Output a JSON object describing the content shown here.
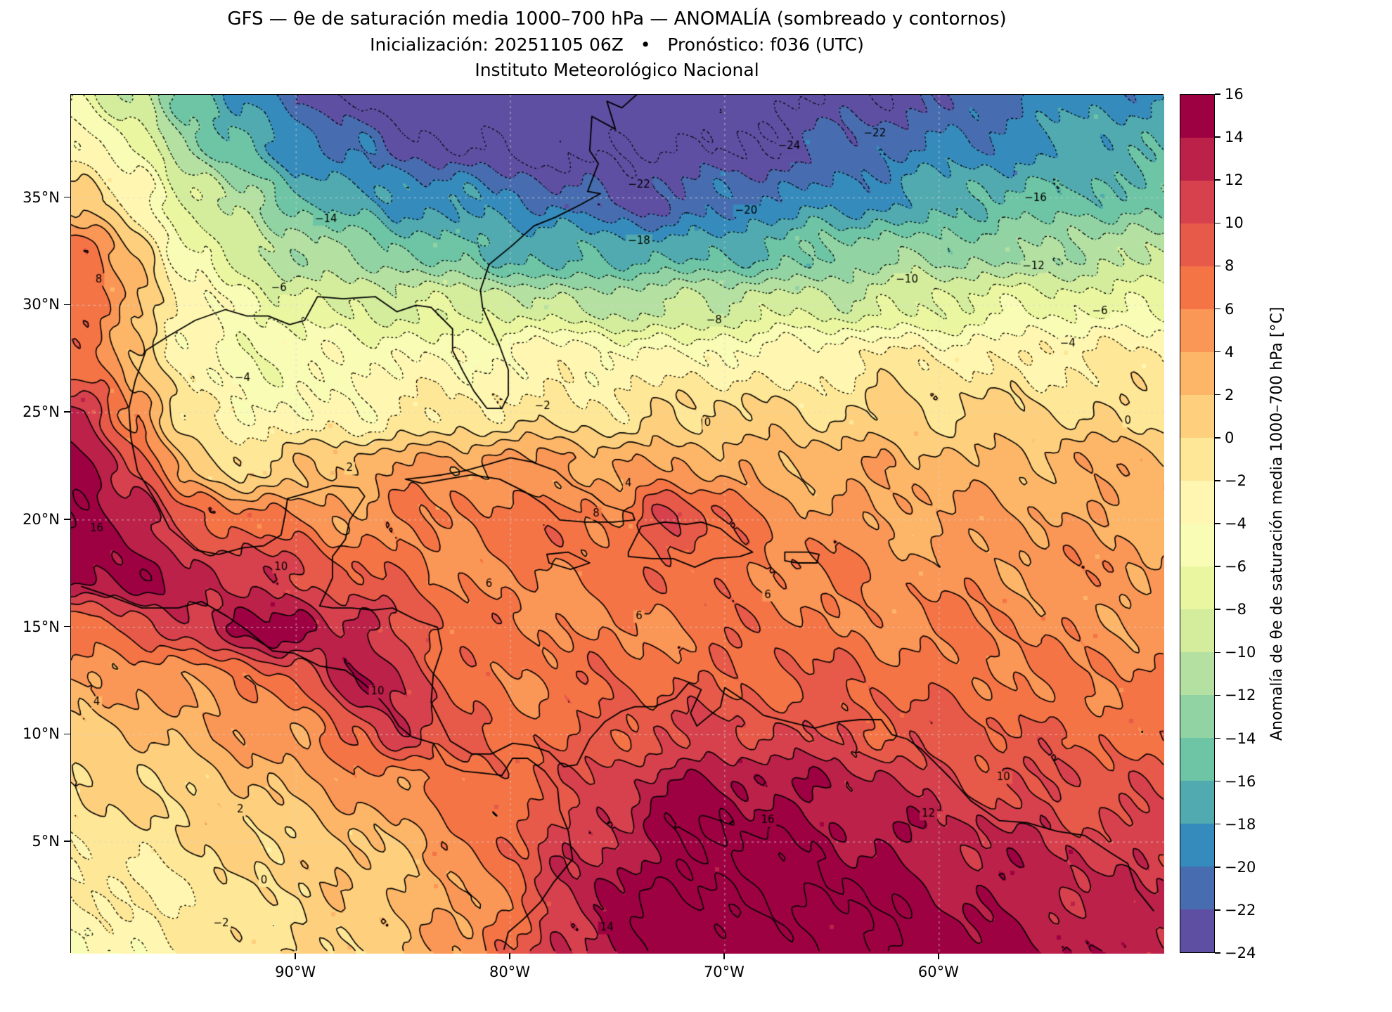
{
  "header": {
    "title": "GFS — θe de saturación media 1000–700 hPa — ANOMALÍA (sombreado y contornos)",
    "subtitle": "Inicialización: 20251105 06Z   •   Pronóstico: f036 (UTC)",
    "institution": "Instituto Meteorológico Nacional"
  },
  "chart_data": {
    "type": "heatmap",
    "subtype": "filled-contour-map",
    "title": "GFS — θe de saturación media 1000–700 hPa — ANOMALÍA (sombreado y contornos)",
    "units": "°C",
    "extent": {
      "lon": [
        -100.5,
        -49.5
      ],
      "lat": [
        -0.2,
        39.8
      ]
    },
    "levels": {
      "min": -24,
      "max": 16,
      "step": 2
    },
    "contour_style": {
      "negative": "dotted",
      "zero_and_positive": "solid",
      "color": "#000000"
    },
    "colors": [
      "#5e4fa2",
      "#476db0",
      "#358bbc",
      "#50aaaf",
      "#6dc5a5",
      "#92d3a4",
      "#b4e1a2",
      "#d3ed9c",
      "#ebf7a0",
      "#f8fcb5",
      "#fff7b1",
      "#fee796",
      "#fed07e",
      "#fdb668",
      "#fa9656",
      "#f57446",
      "#e75948",
      "#d7414e",
      "#bb2149",
      "#9e0142"
    ],
    "grid": {
      "lon_start": -100,
      "lon_step": 2.5,
      "lat_start": 0,
      "lat_step": 2.5,
      "values": [
        [
          -4,
          -3,
          -2,
          -1,
          0,
          1,
          2,
          4,
          8,
          12,
          15,
          17,
          17,
          17,
          16,
          16,
          15,
          14,
          14,
          14,
          13
        ],
        [
          -3,
          -2,
          -2,
          0,
          0,
          1,
          2,
          4,
          7,
          11,
          15,
          16,
          17,
          16,
          16,
          15,
          14,
          14,
          13,
          12,
          12
        ],
        [
          -1,
          -1,
          0,
          0,
          1,
          2,
          3,
          5,
          8,
          11,
          13,
          15,
          16,
          16,
          15,
          14,
          13,
          12,
          12,
          11,
          11
        ],
        [
          0,
          0,
          1,
          2,
          3,
          4,
          5,
          7,
          8,
          9,
          11,
          14,
          15,
          14,
          13,
          12,
          11,
          10,
          10,
          9,
          9
        ],
        [
          2,
          2,
          3,
          4,
          5,
          8,
          12,
          8,
          7,
          8,
          9,
          10,
          10,
          10,
          10,
          9,
          9,
          8,
          8,
          8,
          7
        ],
        [
          4,
          4,
          5,
          6,
          8,
          13,
          12,
          8,
          6,
          7,
          7,
          8,
          8,
          8,
          8,
          7,
          7,
          7,
          6,
          6,
          6
        ],
        [
          8,
          9,
          11,
          14,
          15,
          13,
          10,
          7,
          6,
          6,
          6,
          6,
          7,
          7,
          6,
          6,
          6,
          6,
          5,
          5,
          5
        ],
        [
          14,
          15,
          13,
          12,
          10,
          8,
          7,
          6,
          6,
          6,
          6,
          8,
          7,
          6,
          6,
          5,
          5,
          5,
          5,
          5,
          4
        ],
        [
          16,
          14,
          8,
          7,
          6,
          5,
          6,
          6,
          6,
          8,
          6,
          11,
          7,
          5,
          5,
          4,
          4,
          4,
          4,
          4,
          4
        ],
        [
          14,
          10,
          2,
          0,
          1,
          2,
          4,
          5,
          5,
          4,
          3,
          4,
          4,
          3,
          3,
          3,
          3,
          3,
          3,
          3,
          3
        ],
        [
          12,
          6,
          -2,
          -4,
          -4,
          -3,
          -2,
          -2,
          -2,
          -1,
          -1,
          0,
          0,
          0,
          0,
          1,
          0,
          0,
          0,
          0,
          0
        ],
        [
          6,
          2,
          -3,
          -5,
          -5,
          -5,
          -4,
          -4,
          -3,
          -3,
          -4,
          -4,
          -3,
          -3,
          -3,
          -2,
          -2,
          -2,
          -2,
          -2,
          -2
        ],
        [
          8,
          3,
          -3,
          -6,
          -7,
          -8,
          -8,
          -9,
          -9,
          -10,
          -10,
          -10,
          -10,
          -9,
          -9,
          -8,
          -8,
          -7,
          -7,
          -6,
          -6
        ],
        [
          7,
          1,
          -5,
          -9,
          -11,
          -13,
          -14,
          -15,
          -16,
          -17,
          -17,
          -17,
          -16,
          -15,
          -14,
          -13,
          -13,
          -12,
          -12,
          -11,
          -11
        ],
        [
          2,
          -3,
          -8,
          -12,
          -15,
          -17,
          -18,
          -19,
          -20,
          -21,
          -22,
          -22,
          -21,
          -20,
          -19,
          -18,
          -17,
          -16,
          -16,
          -15,
          -15
        ],
        [
          -3,
          -7,
          -12,
          -16,
          -19,
          -21,
          -23,
          -24,
          -24,
          -25,
          -25,
          -24,
          -24,
          -23,
          -22,
          -21,
          -20,
          -19,
          -18,
          -17,
          -17
        ],
        [
          -6,
          -10,
          -15,
          -19,
          -22,
          -24,
          -26,
          -26,
          -27,
          -27,
          -27,
          -26,
          -26,
          -25,
          -24,
          -23,
          -22,
          -21,
          -20,
          -19,
          -18
        ]
      ]
    },
    "x_ticks": [
      {
        "label": "90°W",
        "lon": -90
      },
      {
        "label": "80°W",
        "lon": -80
      },
      {
        "label": "70°W",
        "lon": -70
      },
      {
        "label": "60°W",
        "lon": -60
      }
    ],
    "y_ticks": [
      {
        "label": "35°N",
        "lat": 35
      },
      {
        "label": "30°N",
        "lat": 30
      },
      {
        "label": "25°N",
        "lat": 25
      },
      {
        "label": "20°N",
        "lat": 20
      },
      {
        "label": "15°N",
        "lat": 15
      },
      {
        "label": "10°N",
        "lat": 10
      },
      {
        "label": "5°N",
        "lat": 5
      }
    ],
    "colorbar": {
      "label": "Anomalía de θe de saturación media 1000–700 hPa [°C]",
      "tick_values": [
        16,
        14,
        12,
        10,
        8,
        6,
        4,
        2,
        0,
        -2,
        -4,
        -6,
        -8,
        -10,
        -12,
        -14,
        -16,
        -18,
        -20,
        -22,
        -24
      ]
    },
    "contour_labels": [
      {
        "v": -24,
        "lon": -67.0,
        "lat": 37.4
      },
      {
        "v": -22,
        "lon": -74.0,
        "lat": 35.6
      },
      {
        "v": -22,
        "lon": -63.0,
        "lat": 38.0
      },
      {
        "v": -20,
        "lon": -69.0,
        "lat": 34.4
      },
      {
        "v": -18,
        "lon": -74.0,
        "lat": 33.0
      },
      {
        "v": -16,
        "lon": -55.5,
        "lat": 35.0
      },
      {
        "v": -14,
        "lon": -88.6,
        "lat": 34.0
      },
      {
        "v": -12,
        "lon": -55.6,
        "lat": 31.8
      },
      {
        "v": -10,
        "lon": -61.5,
        "lat": 31.2
      },
      {
        "v": -8,
        "lon": -70.5,
        "lat": 29.3
      },
      {
        "v": -6,
        "lon": -90.8,
        "lat": 30.8
      },
      {
        "v": -6,
        "lon": -52.5,
        "lat": 29.7
      },
      {
        "v": -4,
        "lon": -92.5,
        "lat": 26.6
      },
      {
        "v": -4,
        "lon": -54.0,
        "lat": 28.2
      },
      {
        "v": -2,
        "lon": -78.5,
        "lat": 25.3
      },
      {
        "v": -2,
        "lon": -93.5,
        "lat": 1.2
      },
      {
        "v": 0,
        "lon": -70.8,
        "lat": 24.5
      },
      {
        "v": 0,
        "lon": -51.2,
        "lat": 24.6
      },
      {
        "v": 0,
        "lon": -91.5,
        "lat": 3.2
      },
      {
        "v": 2,
        "lon": -87.5,
        "lat": 22.4
      },
      {
        "v": 2,
        "lon": -92.6,
        "lat": 6.5
      },
      {
        "v": 4,
        "lon": -99.3,
        "lat": 11.5
      },
      {
        "v": 4,
        "lon": -74.5,
        "lat": 21.7
      },
      {
        "v": 6,
        "lon": -81.0,
        "lat": 17.0
      },
      {
        "v": 6,
        "lon": -74.0,
        "lat": 15.5
      },
      {
        "v": 6,
        "lon": -68.0,
        "lat": 16.5
      },
      {
        "v": 8,
        "lon": -76.0,
        "lat": 20.3
      },
      {
        "v": 8,
        "lon": -99.2,
        "lat": 31.2
      },
      {
        "v": 10,
        "lon": -90.7,
        "lat": 17.8
      },
      {
        "v": 10,
        "lon": -86.2,
        "lat": 12.0
      },
      {
        "v": 10,
        "lon": -57.0,
        "lat": 8.0
      },
      {
        "v": 12,
        "lon": -60.5,
        "lat": 6.3
      },
      {
        "v": 14,
        "lon": -75.5,
        "lat": 1.0
      },
      {
        "v": 16,
        "lon": -99.3,
        "lat": 19.6
      },
      {
        "v": 16,
        "lon": -68.0,
        "lat": 6.0
      }
    ]
  }
}
